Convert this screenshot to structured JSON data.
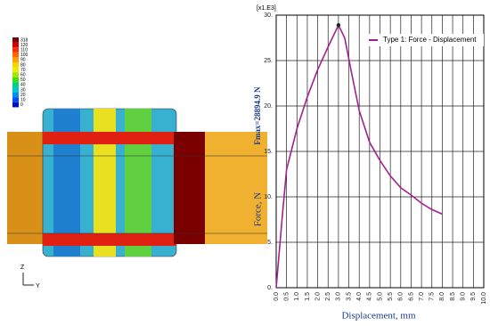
{
  "chart_data": {
    "type": "line",
    "y_multiplier_label": "[x1.E3]",
    "annotation": "Fmax=28894.9 N",
    "x_label": "Displacement, mm",
    "y_label": "Force, N",
    "x": [
      0,
      0.3,
      0.5,
      1.0,
      1.5,
      2.0,
      2.5,
      3.0,
      3.3,
      3.6,
      4.0,
      4.5,
      5.0,
      5.5,
      6.0,
      6.5,
      7.0,
      7.5,
      8.0
    ],
    "series": [
      {
        "name": "Type 1: Force - Displacement",
        "color": "#a2218e",
        "values": [
          0,
          8,
          13,
          17.5,
          21,
          24,
          26.5,
          28.9,
          27.5,
          24,
          19.5,
          16,
          14,
          12.3,
          11,
          10.2,
          9.3,
          8.6,
          8.1
        ]
      }
    ],
    "max_point": {
      "x": 3.0,
      "y": 28.9
    },
    "xlim": [
      0,
      10
    ],
    "ylim": [
      0,
      30
    ],
    "xticks": [
      {
        "value": 0,
        "label": "0.0"
      },
      {
        "value": 0.5,
        "label": "0.5"
      },
      {
        "value": 1,
        "label": "1.0"
      },
      {
        "value": 1.5,
        "label": "1.5"
      },
      {
        "value": 2,
        "label": "2.0"
      },
      {
        "value": 2.5,
        "label": "2.5"
      },
      {
        "value": 3,
        "label": "3.0"
      },
      {
        "value": 3.5,
        "label": "3.5"
      },
      {
        "value": 4,
        "label": "4.0"
      },
      {
        "value": 4.5,
        "label": "4.5"
      },
      {
        "value": 5,
        "label": "5.0"
      },
      {
        "value": 5.5,
        "label": "5.5"
      },
      {
        "value": 6,
        "label": "6.0"
      },
      {
        "value": 6.5,
        "label": "6.5"
      },
      {
        "value": 7,
        "label": "7.0"
      },
      {
        "value": 7.5,
        "label": "7.5"
      },
      {
        "value": 8,
        "label": "8.0"
      },
      {
        "value": 8.5,
        "label": "8.5"
      },
      {
        "value": 9,
        "label": "9.0"
      },
      {
        "value": 9.5,
        "label": "9.5"
      },
      {
        "value": 10,
        "label": "10.0"
      }
    ],
    "yticks": [
      {
        "value": 0,
        "label": "0."
      },
      {
        "value": 5,
        "label": "5."
      },
      {
        "value": 10,
        "label": "10."
      },
      {
        "value": 15,
        "label": "15."
      },
      {
        "value": 20,
        "label": "20."
      },
      {
        "value": 25,
        "label": "25."
      },
      {
        "value": 30,
        "label": "30."
      }
    ],
    "grid": true,
    "legend": "top-right"
  },
  "contour_legend": {
    "labels": [
      "318",
      "120",
      "110",
      "100",
      "90",
      "80",
      "70",
      "60",
      "50",
      "40",
      "30",
      "20",
      "10",
      "0"
    ],
    "colors": [
      "#7a0000",
      "#d40000",
      "#ff2a00",
      "#ff6a00",
      "#ffa000",
      "#ffd000",
      "#e8f000",
      "#a0e800",
      "#40e000",
      "#00d080",
      "#00c8d0",
      "#0090f0",
      "#0050f0",
      "#0010c0"
    ]
  },
  "triad": {
    "labels": [
      "Z",
      "Y"
    ]
  }
}
